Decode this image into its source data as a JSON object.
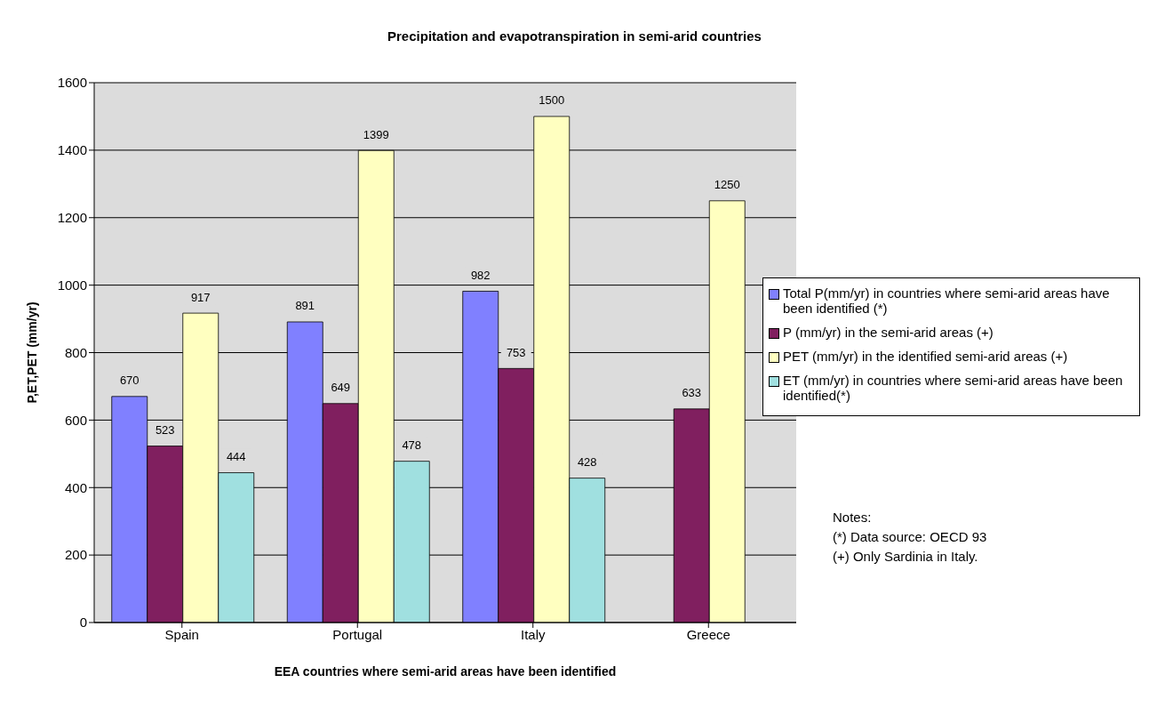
{
  "chart_data": {
    "type": "bar",
    "title": "Precipitation and evapotranspiration in semi-arid countries",
    "xlabel": "EEA countries where semi-arid areas have been identified",
    "ylabel": "P,ET,PET (mm/yr)",
    "categories": [
      "Spain",
      "Portugal",
      "Italy",
      "Greece"
    ],
    "series": [
      {
        "name": "Total P(mm/yr) in countries where semi-arid areas have been identified (*)",
        "color": "#8080ff",
        "values": [
          670,
          891,
          982,
          null
        ]
      },
      {
        "name": "P (mm/yr) in the semi-arid areas (+)",
        "color": "#801f5f",
        "values": [
          523,
          649,
          753,
          633
        ]
      },
      {
        "name": "PET (mm/yr) in the identified semi-arid areas (+)",
        "color": "#ffffc0",
        "values": [
          917,
          1399,
          1500,
          1250
        ]
      },
      {
        "name": "ET (mm/yr) in countries where semi-arid areas have been identified(*)",
        "color": "#a0e0e0",
        "values": [
          444,
          478,
          428,
          null
        ]
      }
    ],
    "ylim": [
      0,
      1600
    ],
    "yticks": [
      0,
      200,
      400,
      600,
      800,
      1000,
      1200,
      1400,
      1600
    ],
    "grid": "y",
    "data_labels": true,
    "legend": "right",
    "annotations": [
      "Notes:",
      "(*) Data source: OECD 93",
      "(+) Only Sardinia in Italy."
    ]
  }
}
